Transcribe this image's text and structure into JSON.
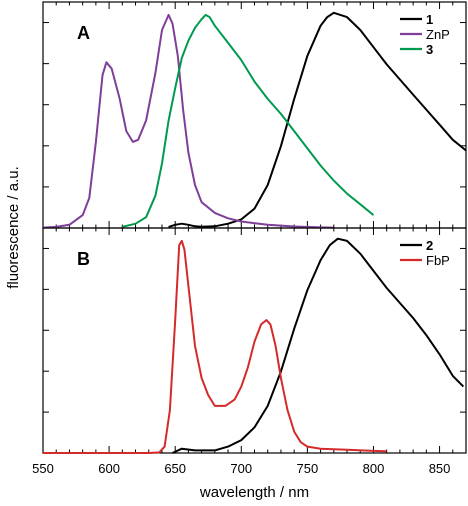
{
  "chart_data": [
    {
      "type": "line",
      "panel_label": "A",
      "xlim": [
        550,
        870
      ],
      "ylim": [
        0,
        1.05
      ],
      "legend_position": "top-right",
      "series": [
        {
          "name": "1",
          "color": "#000000",
          "points": [
            [
              645,
              0.005
            ],
            [
              650,
              0.015
            ],
            [
              655,
              0.02
            ],
            [
              660,
              0.015
            ],
            [
              665,
              0.008
            ],
            [
              670,
              0.006
            ],
            [
              680,
              0.008
            ],
            [
              690,
              0.02
            ],
            [
              700,
              0.04
            ],
            [
              710,
              0.09
            ],
            [
              720,
              0.2
            ],
            [
              730,
              0.38
            ],
            [
              740,
              0.6
            ],
            [
              750,
              0.8
            ],
            [
              760,
              0.94
            ],
            [
              765,
              0.98
            ],
            [
              770,
              1.0
            ],
            [
              780,
              0.98
            ],
            [
              790,
              0.92
            ],
            [
              800,
              0.84
            ],
            [
              810,
              0.76
            ],
            [
              820,
              0.69
            ],
            [
              830,
              0.62
            ],
            [
              840,
              0.55
            ],
            [
              850,
              0.48
            ],
            [
              860,
              0.41
            ],
            [
              870,
              0.36
            ]
          ]
        },
        {
          "name": "ZnP",
          "color": "#7d3f98",
          "points": [
            [
              550,
              0.002
            ],
            [
              560,
              0.005
            ],
            [
              570,
              0.015
            ],
            [
              580,
              0.06
            ],
            [
              585,
              0.14
            ],
            [
              590,
              0.4
            ],
            [
              595,
              0.71
            ],
            [
              598,
              0.77
            ],
            [
              602,
              0.74
            ],
            [
              608,
              0.6
            ],
            [
              613,
              0.45
            ],
            [
              618,
              0.4
            ],
            [
              622,
              0.41
            ],
            [
              628,
              0.5
            ],
            [
              635,
              0.72
            ],
            [
              640,
              0.92
            ],
            [
              645,
              0.99
            ],
            [
              648,
              0.95
            ],
            [
              652,
              0.8
            ],
            [
              656,
              0.55
            ],
            [
              660,
              0.35
            ],
            [
              665,
              0.2
            ],
            [
              670,
              0.12
            ],
            [
              680,
              0.07
            ],
            [
              690,
              0.045
            ],
            [
              700,
              0.03
            ],
            [
              720,
              0.015
            ],
            [
              740,
              0.007
            ],
            [
              760,
              0.003
            ],
            [
              770,
              0.002
            ]
          ]
        },
        {
          "name": "3",
          "color": "#009a4e",
          "points": [
            [
              610,
              0.005
            ],
            [
              620,
              0.02
            ],
            [
              628,
              0.05
            ],
            [
              635,
              0.15
            ],
            [
              640,
              0.3
            ],
            [
              645,
              0.5
            ],
            [
              650,
              0.65
            ],
            [
              655,
              0.79
            ],
            [
              660,
              0.87
            ],
            [
              665,
              0.93
            ],
            [
              670,
              0.97
            ],
            [
              673,
              0.99
            ],
            [
              676,
              0.98
            ],
            [
              680,
              0.94
            ],
            [
              690,
              0.86
            ],
            [
              700,
              0.78
            ],
            [
              710,
              0.68
            ],
            [
              720,
              0.6
            ],
            [
              730,
              0.53
            ],
            [
              740,
              0.45
            ],
            [
              750,
              0.37
            ],
            [
              760,
              0.29
            ],
            [
              770,
              0.22
            ],
            [
              780,
              0.16
            ],
            [
              790,
              0.11
            ],
            [
              800,
              0.06
            ]
          ]
        }
      ]
    },
    {
      "type": "line",
      "panel_label": "B",
      "xlim": [
        550,
        870
      ],
      "ylim": [
        0,
        1.05
      ],
      "legend_position": "top-right",
      "series": [
        {
          "name": "2",
          "color": "#000000",
          "points": [
            [
              648,
              0.0
            ],
            [
              655,
              0.02
            ],
            [
              665,
              0.012
            ],
            [
              680,
              0.012
            ],
            [
              690,
              0.03
            ],
            [
              700,
              0.06
            ],
            [
              710,
              0.12
            ],
            [
              720,
              0.22
            ],
            [
              730,
              0.38
            ],
            [
              740,
              0.58
            ],
            [
              750,
              0.76
            ],
            [
              760,
              0.9
            ],
            [
              767,
              0.97
            ],
            [
              773,
              1.0
            ],
            [
              780,
              0.99
            ],
            [
              790,
              0.93
            ],
            [
              800,
              0.85
            ],
            [
              810,
              0.77
            ],
            [
              820,
              0.7
            ],
            [
              830,
              0.63
            ],
            [
              840,
              0.55
            ],
            [
              850,
              0.46
            ],
            [
              860,
              0.36
            ],
            [
              868,
              0.31
            ]
          ]
        },
        {
          "name": "FbP",
          "color": "#d42a2a",
          "points": [
            [
              550,
              0.0
            ],
            [
              630,
              0.0
            ],
            [
              638,
              0.003
            ],
            [
              642,
              0.03
            ],
            [
              646,
              0.2
            ],
            [
              650,
              0.62
            ],
            [
              653,
              0.97
            ],
            [
              655,
              0.99
            ],
            [
              657,
              0.95
            ],
            [
              660,
              0.78
            ],
            [
              665,
              0.5
            ],
            [
              670,
              0.35
            ],
            [
              675,
              0.27
            ],
            [
              680,
              0.22
            ],
            [
              688,
              0.22
            ],
            [
              695,
              0.25
            ],
            [
              700,
              0.31
            ],
            [
              705,
              0.4
            ],
            [
              710,
              0.52
            ],
            [
              715,
              0.6
            ],
            [
              719,
              0.62
            ],
            [
              722,
              0.6
            ],
            [
              726,
              0.5
            ],
            [
              730,
              0.35
            ],
            [
              735,
              0.2
            ],
            [
              740,
              0.1
            ],
            [
              745,
              0.05
            ],
            [
              750,
              0.03
            ],
            [
              760,
              0.02
            ],
            [
              780,
              0.015
            ],
            [
              800,
              0.01
            ],
            [
              810,
              0.008
            ]
          ]
        }
      ]
    }
  ],
  "axes": {
    "x_label": "wavelength / nm",
    "y_label": "fluorescence / a.u.",
    "x_ticks": [
      "550",
      "600",
      "650",
      "700",
      "750",
      "800",
      "850"
    ]
  }
}
